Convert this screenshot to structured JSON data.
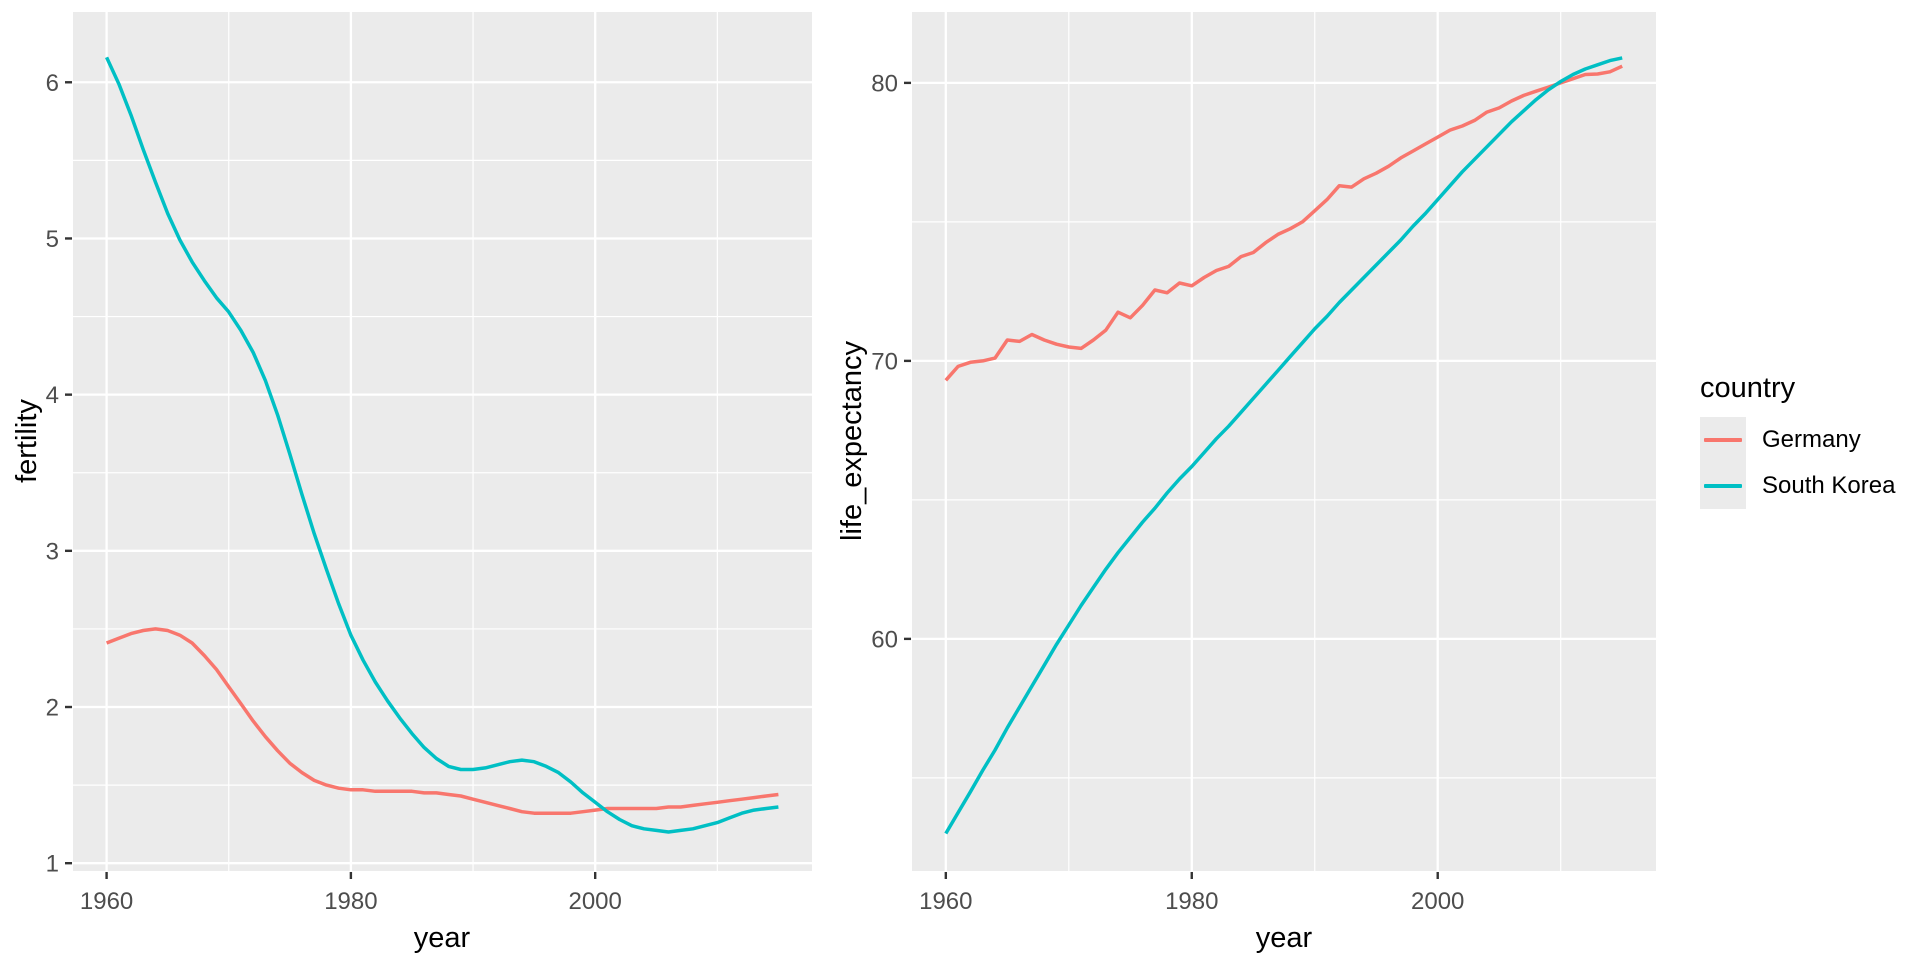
{
  "legend": {
    "title": "country",
    "items": [
      {
        "label": "Germany",
        "color": "#F8766D"
      },
      {
        "label": "South Korea",
        "color": "#00BFC4"
      }
    ]
  },
  "colors": {
    "panel_background": "#EBEBEB",
    "gridline": "#FFFFFF",
    "tick_label": "#4D4D4D",
    "tick_mark": "#333333",
    "axis_title": "#000000",
    "germany": "#F8766D",
    "south_korea": "#00BFC4"
  },
  "chart_data": [
    {
      "type": "line",
      "title": "",
      "xlabel": "year",
      "ylabel": "fertility",
      "legend_position": "right-shared",
      "grid": true,
      "xlim": [
        1957.25,
        2017.75
      ],
      "ylim": [
        0.95,
        6.45
      ],
      "xticks": [
        1960,
        1980,
        2000
      ],
      "xminor": [
        1970,
        1990,
        2010
      ],
      "yticks": [
        1,
        2,
        3,
        4,
        5,
        6
      ],
      "yminor": [
        1.5,
        2.5,
        3.5,
        4.5,
        5.5
      ],
      "x": [
        1960,
        1961,
        1962,
        1963,
        1964,
        1965,
        1966,
        1967,
        1968,
        1969,
        1970,
        1971,
        1972,
        1973,
        1974,
        1975,
        1976,
        1977,
        1978,
        1979,
        1980,
        1981,
        1982,
        1983,
        1984,
        1985,
        1986,
        1987,
        1988,
        1989,
        1990,
        1991,
        1992,
        1993,
        1994,
        1995,
        1996,
        1997,
        1998,
        1999,
        2000,
        2001,
        2002,
        2003,
        2004,
        2005,
        2006,
        2007,
        2008,
        2009,
        2010,
        2011,
        2012,
        2013,
        2014,
        2015
      ],
      "series": [
        {
          "name": "Germany",
          "color": "#F8766D",
          "values": [
            2.41,
            2.44,
            2.47,
            2.49,
            2.5,
            2.49,
            2.46,
            2.41,
            2.33,
            2.24,
            2.13,
            2.02,
            1.91,
            1.81,
            1.72,
            1.64,
            1.58,
            1.53,
            1.5,
            1.48,
            1.47,
            1.47,
            1.46,
            1.46,
            1.46,
            1.46,
            1.45,
            1.45,
            1.44,
            1.43,
            1.41,
            1.39,
            1.37,
            1.35,
            1.33,
            1.32,
            1.32,
            1.32,
            1.32,
            1.33,
            1.34,
            1.35,
            1.35,
            1.35,
            1.35,
            1.35,
            1.36,
            1.36,
            1.37,
            1.38,
            1.39,
            1.4,
            1.41,
            1.42,
            1.43,
            1.44
          ]
        },
        {
          "name": "South Korea",
          "color": "#00BFC4",
          "values": [
            6.16,
            5.99,
            5.79,
            5.57,
            5.36,
            5.16,
            4.99,
            4.85,
            4.73,
            4.62,
            4.53,
            4.41,
            4.27,
            4.09,
            3.87,
            3.62,
            3.36,
            3.11,
            2.88,
            2.66,
            2.46,
            2.3,
            2.16,
            2.04,
            1.93,
            1.83,
            1.74,
            1.67,
            1.62,
            1.6,
            1.6,
            1.61,
            1.63,
            1.65,
            1.66,
            1.65,
            1.62,
            1.58,
            1.52,
            1.45,
            1.39,
            1.33,
            1.28,
            1.24,
            1.22,
            1.21,
            1.2,
            1.21,
            1.22,
            1.24,
            1.26,
            1.29,
            1.32,
            1.34,
            1.35,
            1.36
          ]
        }
      ]
    },
    {
      "type": "line",
      "title": "",
      "xlabel": "year",
      "ylabel": "life_expectancy",
      "legend_position": "right-shared",
      "grid": true,
      "xlim": [
        1957.25,
        2017.75
      ],
      "ylim": [
        51.65,
        82.55
      ],
      "xticks": [
        1960,
        1980,
        2000
      ],
      "xminor": [
        1970,
        1990,
        2010
      ],
      "yticks": [
        60,
        70,
        80
      ],
      "yminor": [
        55,
        65,
        75
      ],
      "x": [
        1960,
        1961,
        1962,
        1963,
        1964,
        1965,
        1966,
        1967,
        1968,
        1969,
        1970,
        1971,
        1972,
        1973,
        1974,
        1975,
        1976,
        1977,
        1978,
        1979,
        1980,
        1981,
        1982,
        1983,
        1984,
        1985,
        1986,
        1987,
        1988,
        1989,
        1990,
        1991,
        1992,
        1993,
        1994,
        1995,
        1996,
        1997,
        1998,
        1999,
        2000,
        2001,
        2002,
        2003,
        2004,
        2005,
        2006,
        2007,
        2008,
        2009,
        2010,
        2011,
        2012,
        2013,
        2014,
        2015
      ],
      "series": [
        {
          "name": "Germany",
          "color": "#F8766D",
          "values": [
            69.3,
            69.8,
            69.95,
            70.0,
            70.1,
            70.75,
            70.7,
            70.95,
            70.75,
            70.6,
            70.5,
            70.45,
            70.75,
            71.1,
            71.75,
            71.55,
            72.0,
            72.55,
            72.45,
            72.8,
            72.7,
            73.0,
            73.25,
            73.4,
            73.75,
            73.9,
            74.25,
            74.55,
            74.75,
            75.0,
            75.4,
            75.8,
            76.3,
            76.25,
            76.55,
            76.75,
            77.0,
            77.3,
            77.55,
            77.8,
            78.05,
            78.3,
            78.45,
            78.65,
            78.95,
            79.1,
            79.35,
            79.55,
            79.7,
            79.85,
            80.0,
            80.15,
            80.3,
            80.32,
            80.4,
            80.6
          ]
        },
        {
          "name": "South Korea",
          "color": "#00BFC4",
          "values": [
            53.0,
            53.75,
            54.5,
            55.27,
            56.0,
            56.8,
            57.55,
            58.3,
            59.05,
            59.8,
            60.5,
            61.2,
            61.85,
            62.5,
            63.1,
            63.65,
            64.2,
            64.7,
            65.25,
            65.75,
            66.2,
            66.7,
            67.2,
            67.65,
            68.15,
            68.65,
            69.15,
            69.65,
            70.15,
            70.65,
            71.15,
            71.6,
            72.1,
            72.55,
            73.0,
            73.45,
            73.9,
            74.35,
            74.85,
            75.3,
            75.8,
            76.3,
            76.8,
            77.25,
            77.7,
            78.15,
            78.6,
            79.0,
            79.4,
            79.75,
            80.05,
            80.3,
            80.5,
            80.65,
            80.8,
            80.9
          ]
        }
      ]
    }
  ]
}
